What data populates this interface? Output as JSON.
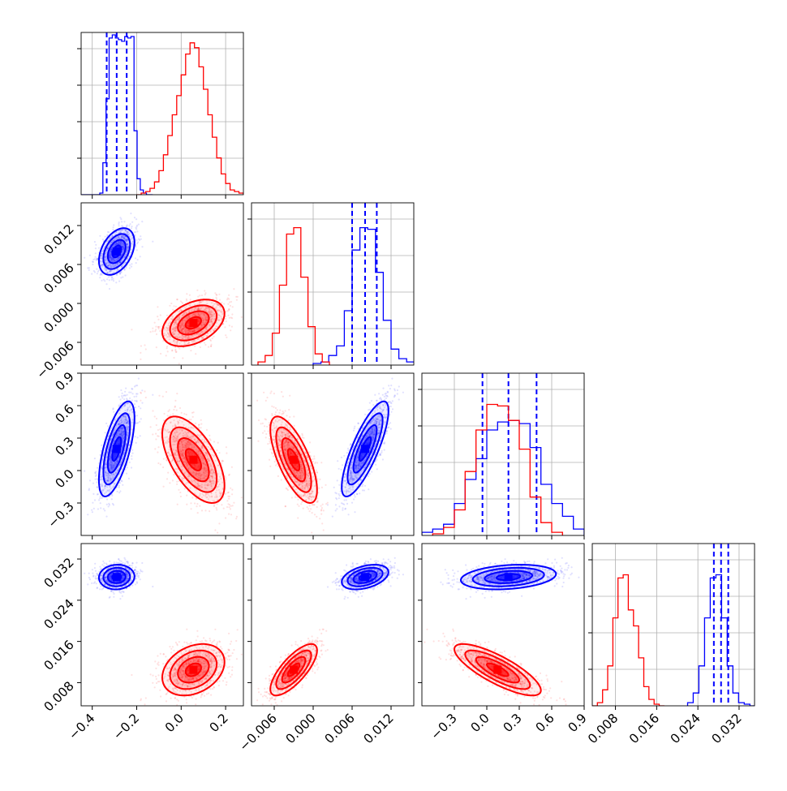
{
  "colors": {
    "blue": "#0000ff",
    "red": "#ff0000",
    "grid": "#b0b0b0",
    "frame": "#000000"
  },
  "chart_data": [
    {
      "type": "corner",
      "title": "",
      "parameters": [
        "",
        "",
        "",
        ""
      ],
      "axes": [
        {
          "lim": [
            -0.45,
            0.28
          ],
          "ticks": [
            -0.4,
            -0.2,
            0.0,
            0.2
          ],
          "tick_labels": [
            "−0.4",
            "−0.2",
            "0.0",
            "0.2"
          ]
        },
        {
          "lim": [
            -0.0095,
            0.0155
          ],
          "ticks": [
            -0.006,
            0.0,
            0.006,
            0.012
          ],
          "tick_labels": [
            "−0.006",
            "0.000",
            "0.006",
            "0.012"
          ]
        },
        {
          "lim": [
            -0.6,
            0.9
          ],
          "ticks": [
            -0.3,
            0.0,
            0.3,
            0.6,
            0.9
          ],
          "tick_labels": [
            "−0.3",
            "0.0",
            "0.3",
            "0.6",
            "0.9"
          ]
        },
        {
          "lim": [
            0.0035,
            0.035
          ],
          "ticks": [
            0.008,
            0.016,
            0.024,
            0.032
          ],
          "tick_labels": [
            "0.008",
            "0.016",
            "0.024",
            "0.032"
          ]
        }
      ],
      "series": [
        {
          "color": "blue",
          "means": [
            -0.29,
            0.008,
            0.2,
            0.0285
          ],
          "sds": [
            0.04,
            0.0018,
            0.22,
            0.0012
          ],
          "corr": [
            [
              1,
              0.4,
              0.65,
              0.05
            ],
            [
              0.4,
              1,
              0.8,
              0.4
            ],
            [
              0.65,
              0.8,
              1,
              0.25
            ],
            [
              0.05,
              0.4,
              0.25,
              1
            ]
          ],
          "quantiles": [
            [
              -0.335,
              -0.29,
              -0.245
            ],
            [
              0.006,
              0.008,
              0.0098
            ],
            [
              -0.04,
              0.2,
              0.46
            ],
            [
              0.0271,
              0.0285,
              0.0299
            ]
          ],
          "hist": [
            {
              "edges": [
                -0.45,
                -0.436,
                -0.422,
                -0.408,
                -0.394,
                -0.38,
                -0.366,
                -0.352,
                -0.338,
                -0.324,
                -0.31,
                -0.296,
                -0.282,
                -0.268,
                -0.254,
                -0.24,
                -0.226,
                -0.212,
                -0.198,
                -0.184,
                -0.17,
                -0.156,
                -0.142,
                -0.128
              ],
              "counts": [
                0,
                0,
                0,
                0,
                0,
                0,
                0.01,
                0.2,
                0.6,
                0.98,
                1,
                0.98,
                0.97,
                0.96,
                0.99,
                0.98,
                0.99,
                0.4,
                0.1,
                0.03,
                0.01,
                0,
                0
              ]
            },
            {
              "edges": [
                0.0,
                0.0012,
                0.0024,
                0.0036,
                0.0048,
                0.006,
                0.0072,
                0.0084,
                0.0096,
                0.0108,
                0.012,
                0.0132,
                0.0144,
                0.0156
              ],
              "counts": [
                0.01,
                0.02,
                0.06,
                0.12,
                0.34,
                0.72,
                0.86,
                0.85,
                0.58,
                0.28,
                0.1,
                0.04,
                0.02
              ]
            },
            {
              "edges": [
                -0.6,
                -0.5,
                -0.4,
                -0.3,
                -0.2,
                -0.1,
                0.0,
                0.1,
                0.2,
                0.3,
                0.4,
                0.5,
                0.6,
                0.7,
                0.8,
                0.9
              ],
              "counts": [
                0.02,
                0.04,
                0.07,
                0.2,
                0.35,
                0.48,
                0.66,
                0.71,
                0.72,
                0.7,
                0.55,
                0.32,
                0.2,
                0.12,
                0.04
              ]
            },
            {
              "edges": [
                0.022,
                0.0231,
                0.0242,
                0.0253,
                0.0264,
                0.0275,
                0.0286,
                0.0297,
                0.0308,
                0.0319,
                0.033,
                0.0341,
                0.0352
              ],
              "counts": [
                0.02,
                0.08,
                0.25,
                0.55,
                0.8,
                0.82,
                0.55,
                0.25,
                0.08,
                0.02,
                0.01,
                0
              ]
            }
          ]
        },
        {
          "color": "red",
          "means": [
            0.055,
            -0.003,
            0.1,
            0.0105
          ],
          "sds": [
            0.07,
            0.0018,
            0.2,
            0.0025
          ],
          "corr": [
            [
              1,
              0.4,
              -0.6,
              0.3
            ],
            [
              0.4,
              1,
              -0.7,
              0.75
            ],
            [
              -0.6,
              -0.7,
              1,
              -0.8
            ],
            [
              0.3,
              0.75,
              -0.8,
              1
            ]
          ],
          "quantiles": [],
          "hist": [
            {
              "edges": [
                -0.2,
                -0.18,
                -0.16,
                -0.14,
                -0.12,
                -0.1,
                -0.08,
                -0.06,
                -0.04,
                -0.02,
                0.0,
                0.02,
                0.04,
                0.06,
                0.08,
                0.1,
                0.12,
                0.14,
                0.16,
                0.18,
                0.2,
                0.22,
                0.24,
                0.26,
                0.28
              ],
              "counts": [
                0,
                0.01,
                0.02,
                0.04,
                0.08,
                0.15,
                0.25,
                0.37,
                0.5,
                0.62,
                0.75,
                0.88,
                0.95,
                0.92,
                0.8,
                0.66,
                0.5,
                0.36,
                0.23,
                0.13,
                0.07,
                0.03,
                0.02,
                0.01
              ]
            },
            {
              "edges": [
                -0.0085,
                -0.0074,
                -0.0063,
                -0.0052,
                -0.0041,
                -0.003,
                -0.0019,
                -0.0008,
                0.0003,
                0.0014,
                0.0025
              ],
              "counts": [
                0.02,
                0.06,
                0.2,
                0.5,
                0.82,
                0.86,
                0.55,
                0.24,
                0.07,
                0.02
              ]
            },
            {
              "edges": [
                -0.5,
                -0.4,
                -0.3,
                -0.2,
                -0.1,
                0.0,
                0.1,
                0.2,
                0.3,
                0.4,
                0.5,
                0.6,
                0.7
              ],
              "counts": [
                0.01,
                0.05,
                0.16,
                0.4,
                0.66,
                0.82,
                0.81,
                0.72,
                0.54,
                0.24,
                0.08,
                0.02
              ]
            },
            {
              "edges": [
                0.0035,
                0.0045,
                0.0055,
                0.0065,
                0.0075,
                0.0085,
                0.0095,
                0.0105,
                0.0115,
                0.0125,
                0.0135,
                0.0145,
                0.0155,
                0.0165,
                0.0175
              ],
              "counts": [
                0,
                0.02,
                0.1,
                0.25,
                0.55,
                0.8,
                0.82,
                0.6,
                0.5,
                0.3,
                0.12,
                0.04,
                0.01,
                0
              ]
            }
          ]
        }
      ]
    }
  ]
}
